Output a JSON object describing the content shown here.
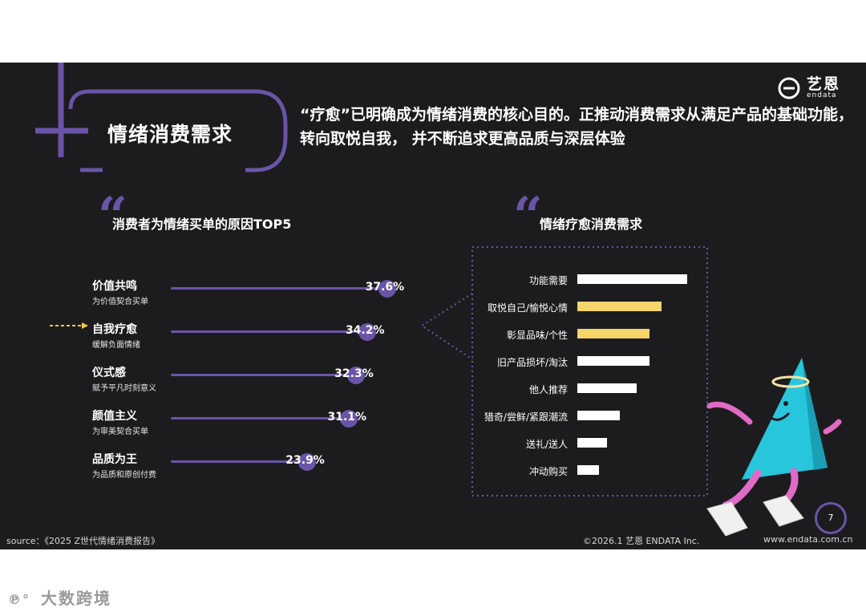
{
  "section_title": "情绪消费需求",
  "headline": "“疗愈”已明确成为情绪消费的核心目的。正推动消费需求从满足产品的基础功能，转向取悦自我， 并不断追求更高品质与深层体验",
  "brand": {
    "name": "艺恩",
    "sub": "endata"
  },
  "left_panel": {
    "title": "消费者为情绪买单的原因TOP5"
  },
  "right_panel": {
    "title": "情绪疗愈消费需求"
  },
  "chart_data": [
    {
      "type": "bar",
      "title": "消费者为情绪买单的原因TOP5",
      "categories": [
        "价值共鸣",
        "自我疗愈",
        "仪式感",
        "颜值主义",
        "品质为王"
      ],
      "descriptions": [
        "为价值契合买单",
        "缓解负面情绪",
        "赋予平凡时刻意义",
        "为审美契合买单",
        "为品质和原创付费"
      ],
      "values": [
        37.6,
        34.2,
        32.3,
        31.1,
        23.9
      ],
      "value_labels": [
        "37.6%",
        "34.2%",
        "32.3%",
        "31.1%",
        "23.9%"
      ],
      "highlighted": "自我疗愈",
      "xlim": [
        0,
        40
      ],
      "colors": {
        "bar": "#6a54a8",
        "highlight_arrow": "#f2c94c"
      }
    },
    {
      "type": "bar",
      "title": "情绪疗愈消费需求",
      "categories": [
        "功能需要",
        "取悦自己/愉悦心情",
        "彰显品味/个性",
        "旧产品损坏/淘汰",
        "他人推荐",
        "猎奇/尝鲜/紧跟潮流",
        "送礼/送人",
        "冲动购买"
      ],
      "values": [
        100,
        77,
        66,
        66,
        54,
        39,
        27,
        20
      ],
      "highlighted": [
        "取悦自己/愉悦心情",
        "彰显品味/个性"
      ],
      "xlim": [
        0,
        100
      ],
      "colors": {
        "bar": "#ffffff",
        "highlight": "#f5d46a"
      }
    }
  ],
  "page_number": "7",
  "footer": {
    "source": "source：《2025 Z世代情绪消费报告》",
    "copyright": "©2026.1  艺恩 ENDATA Inc.",
    "website": "www.endata.com.cn"
  },
  "watermark": "大数跨境"
}
